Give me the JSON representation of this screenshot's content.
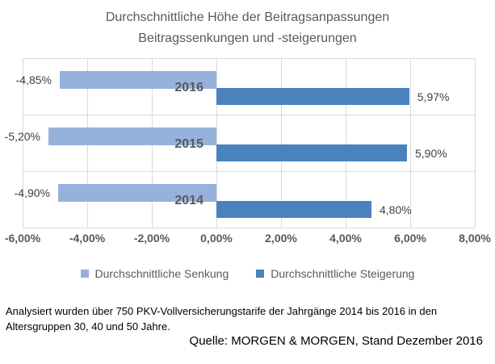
{
  "title": {
    "line1": "Durchschnittliche Höhe der Beitragsanpassungen",
    "line2": "Beitragssenkungen und -steigerungen"
  },
  "chart_data": {
    "type": "bar",
    "orientation": "horizontal",
    "categories": [
      "2016",
      "2015",
      "2014"
    ],
    "series": [
      {
        "name": "Durchschnittliche Senkung",
        "color": "#96B2DC",
        "values": [
          -4.85,
          -5.2,
          -4.9
        ],
        "labels": [
          "-4,85%",
          "-5,20%",
          "-4,90%"
        ]
      },
      {
        "name": "Durchschnittliche Steigerung",
        "color": "#4A82BC",
        "values": [
          5.97,
          5.9,
          4.8
        ],
        "labels": [
          "5,97%",
          "5,90%",
          "4,80%"
        ]
      }
    ],
    "x_axis": {
      "min": -6,
      "max": 8,
      "tick_step": 2,
      "tick_labels": [
        "-6,00%",
        "-4,00%",
        "-2,00%",
        "0,00%",
        "2,00%",
        "4,00%",
        "6,00%",
        "8,00%"
      ]
    },
    "grid": true,
    "legend_position": "bottom",
    "gridline_color": "#D9D9D9",
    "axis_text_color": "#595959",
    "value_label_color": "#3F3F3F"
  },
  "footer": {
    "line1": "Analysiert wurden über 750 PKV-Vollversicherungstarife der Jahrgänge 2014 bis 2016 in den",
    "line2": "Altersgruppen 30, 40 und 50 Jahre.",
    "source": "Quelle: MORGEN & MORGEN, Stand Dezember 2016"
  }
}
